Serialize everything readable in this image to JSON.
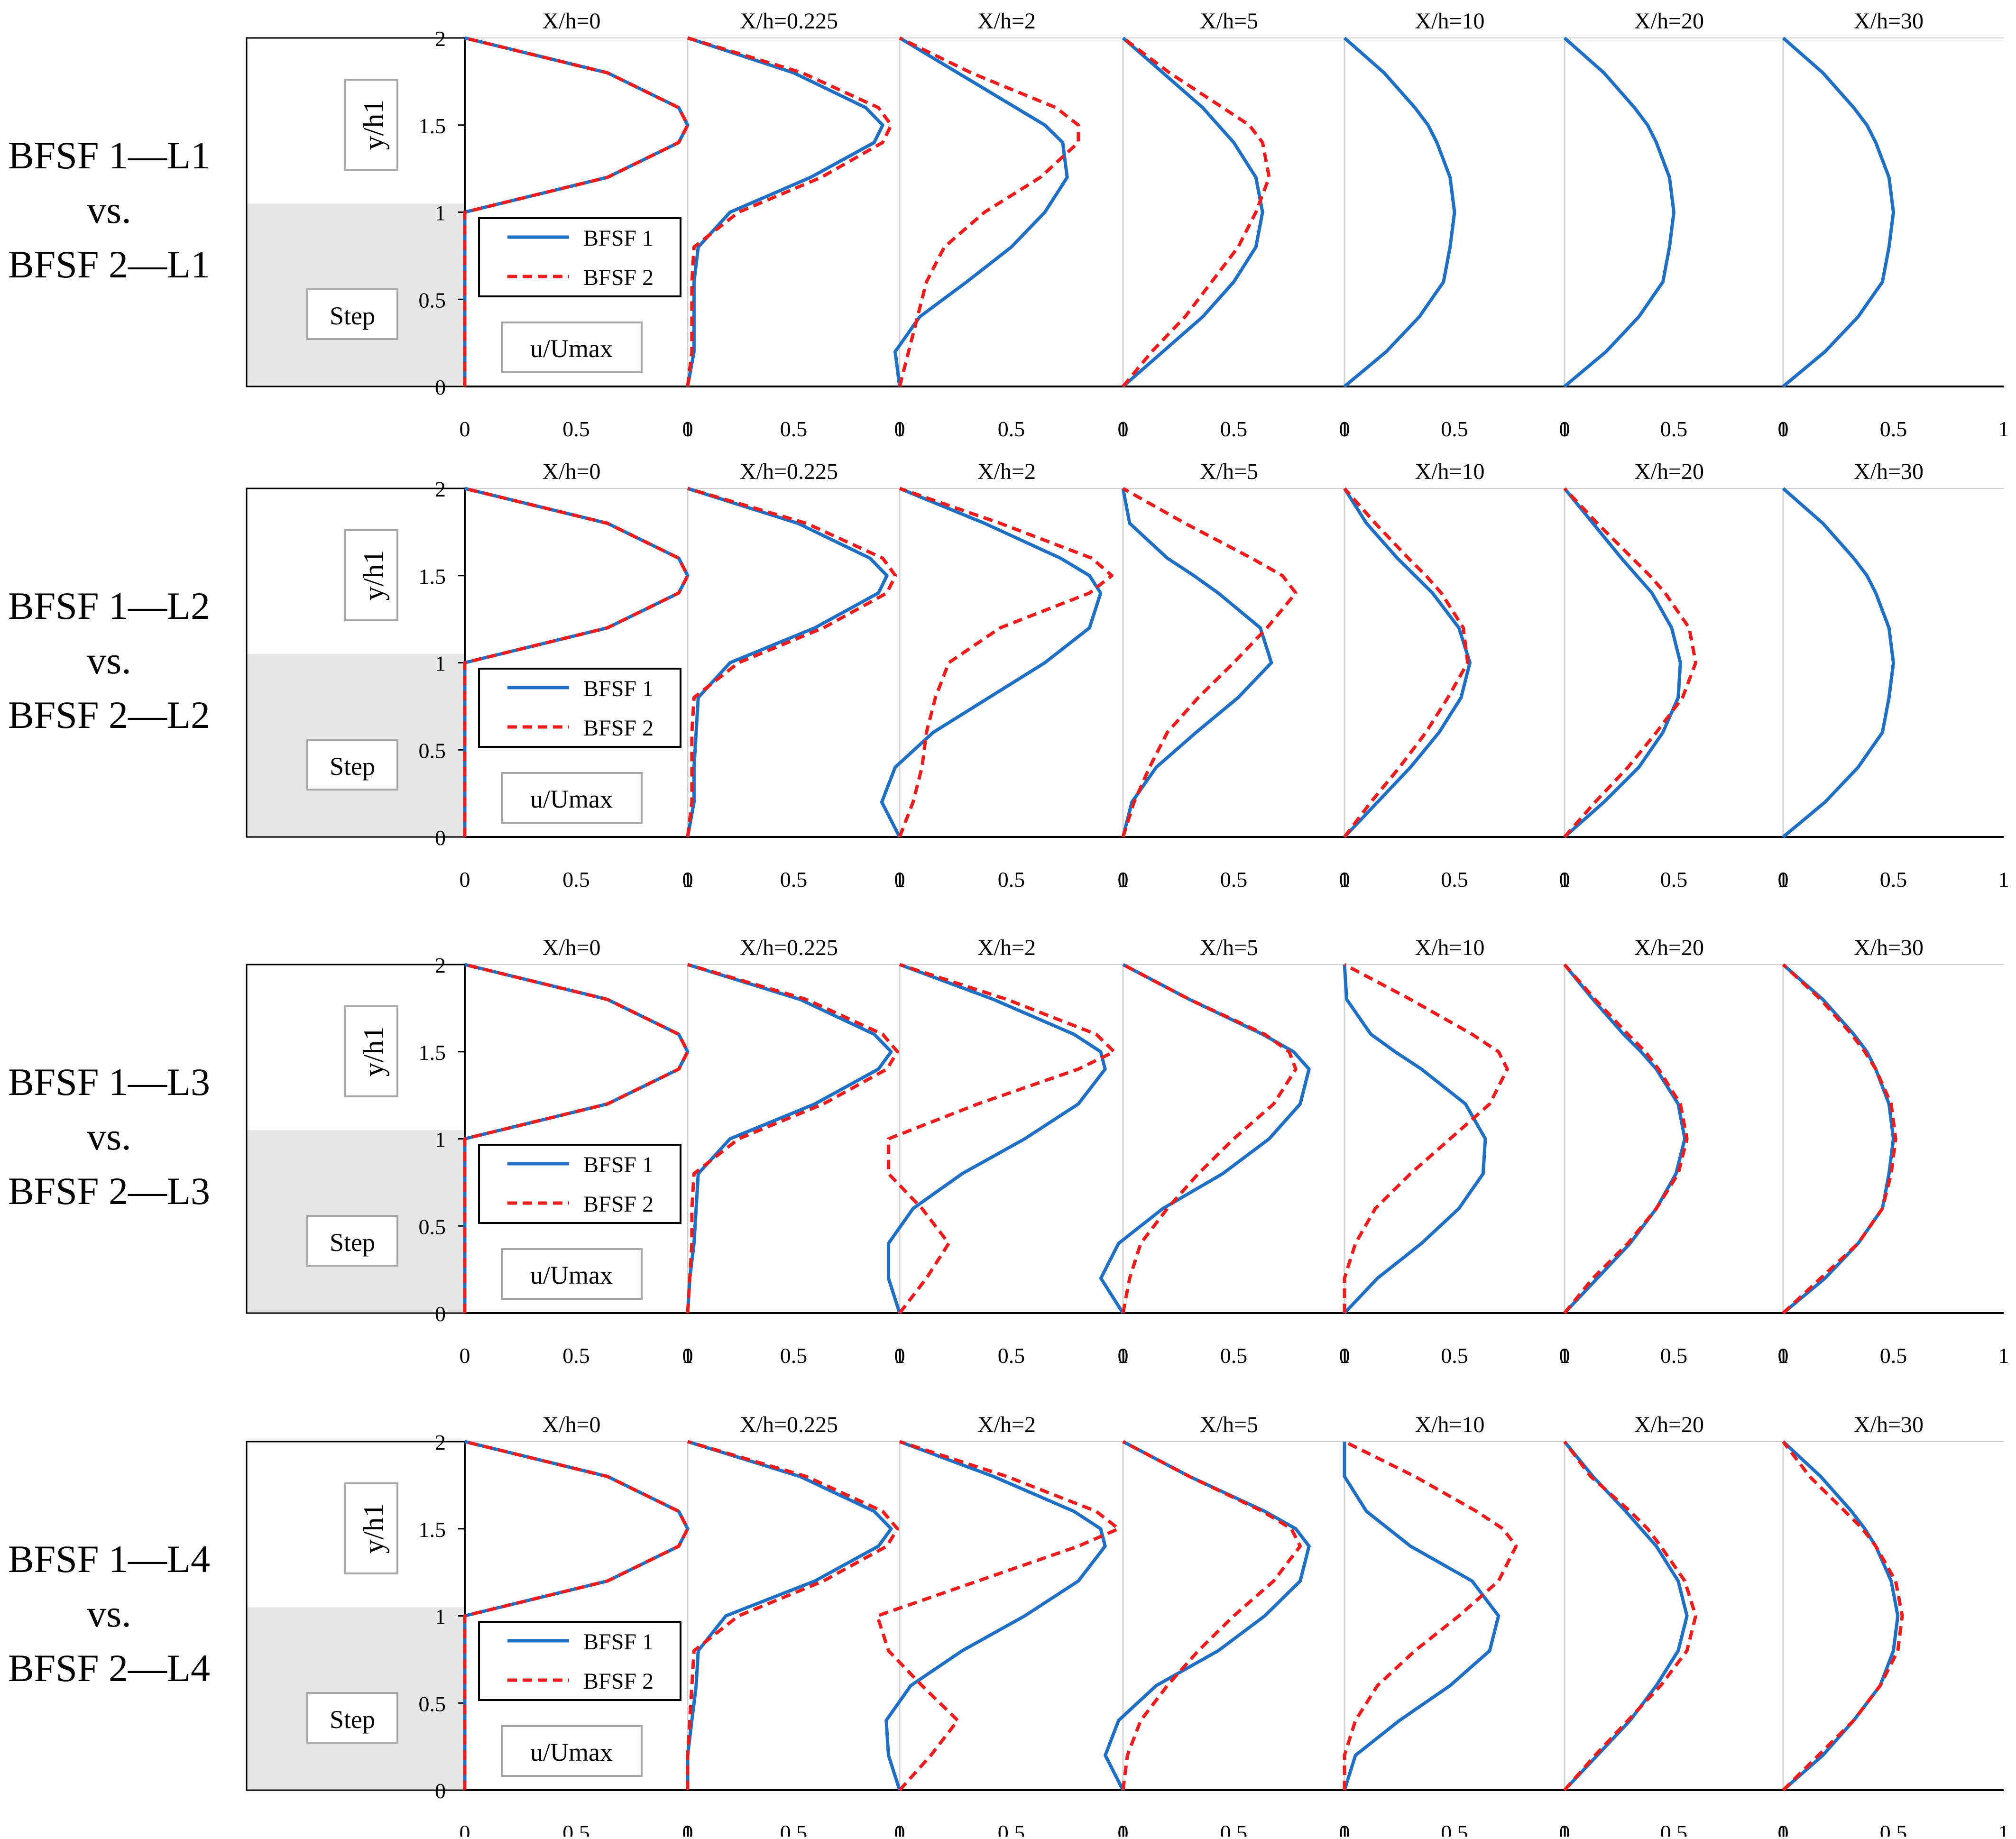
{
  "colors": {
    "bfsf1": "#1f6fc5",
    "bfsf2": "#ee1c1c",
    "step_fill": "#e6e6e6",
    "grid": "#d0d0d0",
    "axis": "#000000",
    "box_border": "#a6a6a6"
  },
  "labels": {
    "ylabel": "y/h1",
    "step": "Step",
    "xunit": "u/Umax",
    "legend1": "BFSF 1",
    "legend2": "BFSF 2"
  },
  "axes": {
    "yticks": [
      "0",
      "0.5",
      "1",
      "1.5",
      "2"
    ],
    "xticks": [
      [
        "0",
        "0.5",
        "1"
      ],
      [
        "0",
        "0.5",
        "1"
      ],
      [
        "0",
        "0.5",
        "1"
      ],
      [
        "0",
        "0.5",
        "1"
      ],
      [
        "0",
        "0.5",
        "1"
      ],
      [
        "0",
        "0.5",
        "1"
      ],
      [
        "0",
        "0.5",
        "1"
      ]
    ]
  },
  "chart_data": [
    {
      "type": "line",
      "title_lines": [
        "BFSF 1—L1",
        "vs.",
        "BFSF 2—L1"
      ],
      "xlabel": "u/Umax",
      "ylabel": "y/h1",
      "xlim": [
        0,
        1
      ],
      "ylim": [
        0,
        2
      ],
      "stations": [
        "X/h=0",
        "X/h=0.225",
        "X/h=2",
        "X/h=5",
        "X/h=10",
        "X/h=20",
        "X/h=30"
      ],
      "y": [
        0,
        0.2,
        0.4,
        0.6,
        0.8,
        1.0,
        1.2,
        1.4,
        1.5,
        1.6,
        1.8,
        2.0
      ],
      "series": [
        {
          "name": "BFSF 1",
          "profiles": [
            [
              0,
              0,
              0,
              0,
              0,
              0,
              0.64,
              0.96,
              1.0,
              0.96,
              0.64,
              0
            ],
            [
              0,
              0.03,
              0.03,
              0.03,
              0.05,
              0.2,
              0.58,
              0.88,
              0.92,
              0.84,
              0.5,
              0
            ],
            [
              0,
              -0.02,
              0.09,
              0.3,
              0.5,
              0.65,
              0.75,
              0.73,
              0.65,
              0.52,
              0.26,
              0
            ],
            [
              0,
              0.18,
              0.36,
              0.5,
              0.6,
              0.63,
              0.6,
              0.5,
              0.43,
              0.36,
              0.18,
              0
            ],
            [
              0,
              0.19,
              0.34,
              0.45,
              0.48,
              0.5,
              0.48,
              0.42,
              0.38,
              0.32,
              0.18,
              0
            ],
            [
              0,
              0.19,
              0.34,
              0.45,
              0.48,
              0.5,
              0.48,
              0.42,
              0.38,
              0.32,
              0.18,
              0
            ],
            [
              0,
              0.19,
              0.34,
              0.45,
              0.48,
              0.5,
              0.48,
              0.42,
              0.38,
              0.32,
              0.18,
              0
            ]
          ]
        },
        {
          "name": "BFSF 2",
          "profiles": [
            [
              0,
              0,
              0,
              0,
              0,
              0,
              0.64,
              0.96,
              1.0,
              0.96,
              0.64,
              0
            ],
            [
              0,
              0.02,
              0.02,
              0.02,
              0.03,
              0.24,
              0.63,
              0.92,
              0.96,
              0.9,
              0.54,
              0
            ],
            [
              0,
              0.04,
              0.08,
              0.12,
              0.2,
              0.38,
              0.63,
              0.8,
              0.8,
              0.7,
              0.32,
              0
            ],
            [
              0,
              0.13,
              0.28,
              0.4,
              0.52,
              0.6,
              0.66,
              0.63,
              0.57,
              0.45,
              0.21,
              0
            ]
          ]
        }
      ]
    },
    {
      "type": "line",
      "title_lines": [
        "BFSF 1—L2",
        "vs.",
        "BFSF 2—L2"
      ],
      "xlabel": "u/Umax",
      "ylabel": "y/h1",
      "xlim": [
        0,
        1
      ],
      "ylim": [
        0,
        2
      ],
      "stations": [
        "X/h=0",
        "X/h=0.225",
        "X/h=2",
        "X/h=5",
        "X/h=10",
        "X/h=20",
        "X/h=30"
      ],
      "y": [
        0,
        0.2,
        0.4,
        0.6,
        0.8,
        1.0,
        1.2,
        1.4,
        1.5,
        1.6,
        1.8,
        2.0
      ],
      "series": [
        {
          "name": "BFSF 1",
          "profiles": [
            [
              0,
              0,
              0,
              0,
              0,
              0,
              0.64,
              0.96,
              1.0,
              0.96,
              0.64,
              0
            ],
            [
              0,
              0.03,
              0.03,
              0.04,
              0.05,
              0.2,
              0.6,
              0.9,
              0.94,
              0.86,
              0.52,
              0
            ],
            [
              0,
              -0.08,
              -0.02,
              0.15,
              0.4,
              0.65,
              0.85,
              0.9,
              0.85,
              0.72,
              0.38,
              0
            ],
            [
              0,
              0.04,
              0.15,
              0.33,
              0.52,
              0.67,
              0.62,
              0.43,
              0.32,
              0.2,
              0.03,
              0
            ],
            [
              0,
              0.15,
              0.3,
              0.43,
              0.53,
              0.57,
              0.52,
              0.4,
              0.32,
              0.24,
              0.1,
              0
            ],
            [
              0,
              0.18,
              0.34,
              0.45,
              0.52,
              0.53,
              0.49,
              0.4,
              0.33,
              0.26,
              0.13,
              0
            ],
            [
              0,
              0.19,
              0.34,
              0.45,
              0.48,
              0.5,
              0.48,
              0.42,
              0.38,
              0.32,
              0.18,
              0
            ]
          ]
        },
        {
          "name": "BFSF 2",
          "profiles": [
            [
              0,
              0,
              0,
              0,
              0,
              0,
              0.64,
              0.96,
              1.0,
              0.96,
              0.64,
              0
            ],
            [
              0,
              0.02,
              0.02,
              0.02,
              0.03,
              0.24,
              0.64,
              0.94,
              0.98,
              0.92,
              0.56,
              0
            ],
            [
              0,
              0.06,
              0.1,
              0.12,
              0.16,
              0.22,
              0.45,
              0.85,
              0.95,
              0.86,
              0.45,
              0
            ],
            [
              0,
              0.05,
              0.12,
              0.2,
              0.34,
              0.5,
              0.65,
              0.78,
              0.72,
              0.58,
              0.28,
              0
            ],
            [
              0,
              0.12,
              0.25,
              0.37,
              0.47,
              0.56,
              0.54,
              0.44,
              0.37,
              0.29,
              0.14,
              0
            ],
            [
              0,
              0.14,
              0.29,
              0.42,
              0.54,
              0.6,
              0.57,
              0.46,
              0.39,
              0.31,
              0.15,
              0
            ]
          ]
        }
      ]
    },
    {
      "type": "line",
      "title_lines": [
        "BFSF 1—L3",
        "vs.",
        "BFSF 2—L3"
      ],
      "xlabel": "u/Umax",
      "ylabel": "y/h1",
      "xlim": [
        0,
        1
      ],
      "ylim": [
        0,
        2
      ],
      "stations": [
        "X/h=0",
        "X/h=0.225",
        "X/h=2",
        "X/h=5",
        "X/h=10",
        "X/h=20",
        "X/h=30"
      ],
      "y": [
        0,
        0.2,
        0.4,
        0.6,
        0.8,
        1.0,
        1.2,
        1.4,
        1.5,
        1.6,
        1.8,
        2.0
      ],
      "series": [
        {
          "name": "BFSF 1",
          "profiles": [
            [
              0,
              0,
              0,
              0,
              0,
              0,
              0.64,
              0.96,
              1.0,
              0.96,
              0.64,
              0
            ],
            [
              0,
              0.01,
              0.03,
              0.04,
              0.05,
              0.2,
              0.6,
              0.9,
              0.96,
              0.88,
              0.53,
              0
            ],
            [
              0,
              -0.05,
              -0.05,
              0.06,
              0.28,
              0.56,
              0.8,
              0.92,
              0.9,
              0.78,
              0.42,
              0
            ],
            [
              0,
              -0.1,
              -0.02,
              0.18,
              0.45,
              0.66,
              0.8,
              0.84,
              0.77,
              0.63,
              0.3,
              0
            ],
            [
              0,
              0.15,
              0.35,
              0.52,
              0.63,
              0.64,
              0.55,
              0.35,
              0.23,
              0.12,
              0.01,
              0
            ],
            [
              0,
              0.15,
              0.3,
              0.42,
              0.51,
              0.55,
              0.52,
              0.42,
              0.35,
              0.27,
              0.13,
              0
            ],
            [
              0,
              0.19,
              0.34,
              0.45,
              0.48,
              0.5,
              0.48,
              0.42,
              0.38,
              0.32,
              0.18,
              0
            ]
          ]
        },
        {
          "name": "BFSF 2",
          "profiles": [
            [
              0,
              0,
              0,
              0,
              0,
              0,
              0.64,
              0.96,
              1.0,
              0.96,
              0.64,
              0
            ],
            [
              0,
              0.01,
              0.02,
              0.02,
              0.03,
              0.24,
              0.64,
              0.94,
              0.99,
              0.92,
              0.56,
              0
            ],
            [
              0,
              0.12,
              0.22,
              0.1,
              -0.05,
              -0.05,
              0.35,
              0.8,
              0.96,
              0.88,
              0.48,
              0
            ],
            [
              0,
              0.03,
              0.08,
              0.2,
              0.34,
              0.5,
              0.68,
              0.78,
              0.75,
              0.64,
              0.3,
              0
            ],
            [
              0,
              0,
              0.05,
              0.14,
              0.3,
              0.48,
              0.66,
              0.74,
              0.7,
              0.58,
              0.3,
              0
            ],
            [
              0,
              0.13,
              0.29,
              0.42,
              0.52,
              0.56,
              0.53,
              0.43,
              0.37,
              0.29,
              0.14,
              0
            ],
            [
              0,
              0.17,
              0.34,
              0.45,
              0.49,
              0.51,
              0.49,
              0.42,
              0.37,
              0.31,
              0.17,
              0
            ]
          ]
        }
      ]
    },
    {
      "type": "line",
      "title_lines": [
        "BFSF 1—L4",
        "vs.",
        "BFSF 2—L4"
      ],
      "xlabel": "u/Umax",
      "ylabel": "y/h1",
      "xlim": [
        0,
        1
      ],
      "ylim": [
        0,
        2
      ],
      "stations": [
        "X/h=0",
        "X/h=0.225",
        "X/h=2",
        "X/h=5",
        "X/h=10",
        "X/h=20",
        "X/h=30"
      ],
      "y": [
        0,
        0.2,
        0.4,
        0.6,
        0.8,
        1.0,
        1.2,
        1.4,
        1.5,
        1.6,
        1.8,
        2.0
      ],
      "series": [
        {
          "name": "BFSF 1",
          "profiles": [
            [
              0,
              0,
              0,
              0,
              0,
              0,
              0.64,
              0.96,
              1.0,
              0.96,
              0.64,
              0
            ],
            [
              0,
              0,
              0.02,
              0.04,
              0.05,
              0.18,
              0.6,
              0.9,
              0.96,
              0.88,
              0.53,
              0
            ],
            [
              0,
              -0.05,
              -0.06,
              0.05,
              0.28,
              0.56,
              0.8,
              0.92,
              0.9,
              0.78,
              0.42,
              0
            ],
            [
              0,
              -0.08,
              -0.02,
              0.15,
              0.43,
              0.64,
              0.8,
              0.84,
              0.78,
              0.64,
              0.3,
              0
            ],
            [
              0,
              0.05,
              0.25,
              0.48,
              0.66,
              0.7,
              0.58,
              0.3,
              0.2,
              0.1,
              0,
              0
            ],
            [
              0,
              0.15,
              0.3,
              0.42,
              0.52,
              0.56,
              0.52,
              0.42,
              0.35,
              0.28,
              0.13,
              0
            ],
            [
              0,
              0.18,
              0.32,
              0.44,
              0.5,
              0.52,
              0.49,
              0.42,
              0.37,
              0.31,
              0.17,
              0
            ]
          ]
        },
        {
          "name": "BFSF 2",
          "profiles": [
            [
              0,
              0,
              0,
              0,
              0,
              0,
              0.64,
              0.96,
              1.0,
              0.96,
              0.64,
              0
            ],
            [
              0,
              0,
              0.01,
              0.02,
              0.03,
              0.24,
              0.64,
              0.94,
              0.99,
              0.92,
              0.56,
              0
            ],
            [
              0,
              0.14,
              0.26,
              0.1,
              -0.05,
              -0.1,
              0.35,
              0.8,
              0.98,
              0.88,
              0.48,
              0
            ],
            [
              0,
              0.02,
              0.08,
              0.2,
              0.34,
              0.5,
              0.68,
              0.8,
              0.76,
              0.63,
              0.3,
              0
            ],
            [
              0,
              0,
              0.05,
              0.15,
              0.32,
              0.52,
              0.7,
              0.78,
              0.72,
              0.6,
              0.32,
              0
            ],
            [
              0,
              0.14,
              0.29,
              0.44,
              0.56,
              0.6,
              0.55,
              0.44,
              0.38,
              0.3,
              0.12,
              0
            ],
            [
              0,
              0.16,
              0.32,
              0.44,
              0.52,
              0.54,
              0.51,
              0.42,
              0.36,
              0.28,
              0.12,
              0
            ]
          ]
        }
      ]
    }
  ]
}
